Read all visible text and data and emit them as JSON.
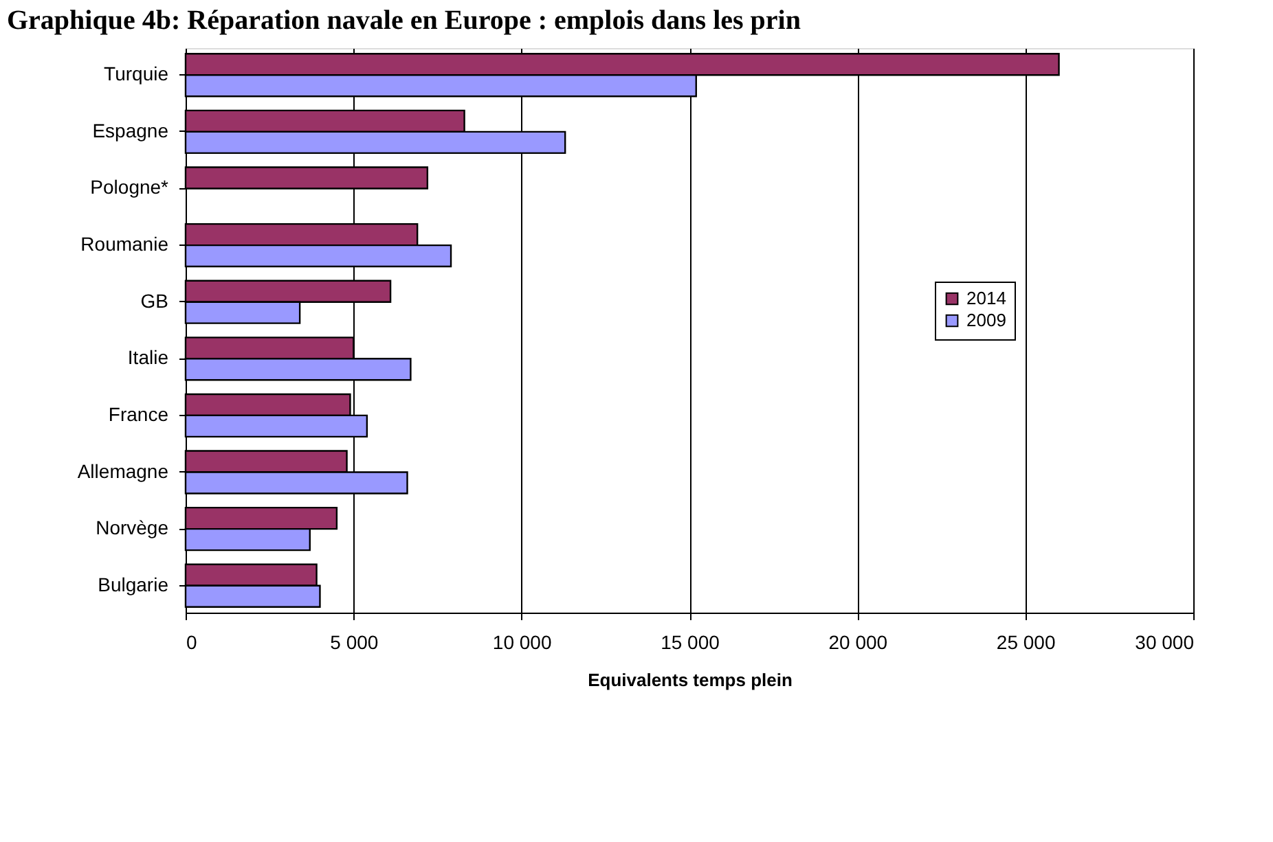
{
  "chart_data": {
    "type": "bar",
    "orientation": "horizontal",
    "title": "Graphique 4b: Réparation navale en Europe : emplois dans les prin",
    "xlabel": "Equivalents temps plein",
    "categories": [
      "Turquie",
      "Espagne",
      "Pologne*",
      "Roumanie",
      "GB",
      "Italie",
      "France",
      "Allemagne",
      "Norvège",
      "Bulgarie"
    ],
    "series": [
      {
        "name": "2014",
        "color": "#993366",
        "values": [
          26000,
          8300,
          7200,
          6900,
          6100,
          5000,
          4900,
          4800,
          4500,
          3900
        ]
      },
      {
        "name": "2009",
        "color": "#9999ff",
        "values": [
          15200,
          11300,
          null,
          7900,
          3400,
          6700,
          5400,
          6600,
          3700,
          4000
        ]
      }
    ],
    "xlim": [
      0,
      30000
    ],
    "xticks": [
      {
        "value": 0,
        "label": "0"
      },
      {
        "value": 5000,
        "label": "5 000"
      },
      {
        "value": 10000,
        "label": "10 000"
      },
      {
        "value": 15000,
        "label": "15 000"
      },
      {
        "value": 20000,
        "label": "20 000"
      },
      {
        "value": 25000,
        "label": "25 000"
      },
      {
        "value": 30000,
        "label": "30 000"
      }
    ],
    "grid": "x",
    "legend": "right"
  }
}
